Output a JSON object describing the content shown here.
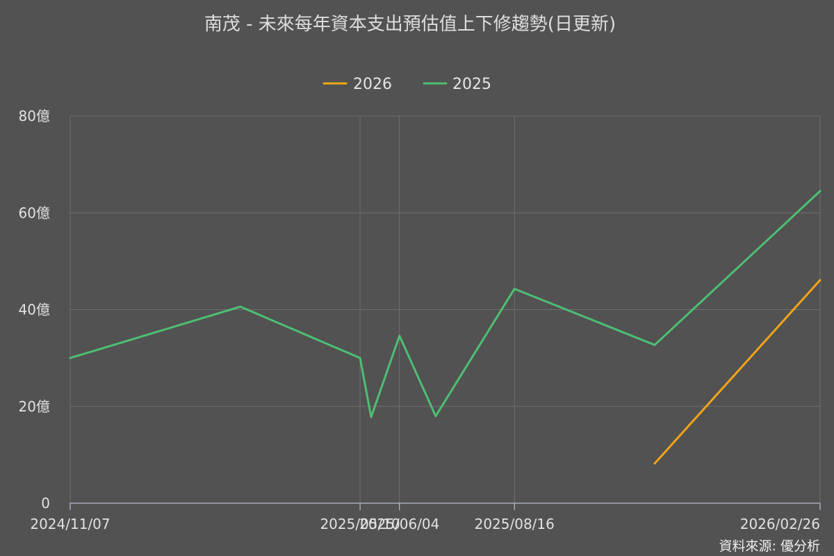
{
  "chart_data": {
    "type": "line",
    "title": "南茂 - 未來每年資本支出預估值上下修趨勢(日更新)",
    "xlim": [
      "2024/11/07",
      "2026/02/26"
    ],
    "ylim": [
      0,
      80
    ],
    "grid": true,
    "legend_position": "top-center",
    "x_ticks": [
      "2024/11/07",
      "2025/05/10",
      "2025/06/04",
      "2025/08/16",
      "2026/02/26"
    ],
    "y_ticks": [
      {
        "value": 0,
        "label": "0"
      },
      {
        "value": 20,
        "label": "20億"
      },
      {
        "value": 40,
        "label": "40億"
      },
      {
        "value": 60,
        "label": "60億"
      },
      {
        "value": 80,
        "label": "80億"
      }
    ],
    "series": [
      {
        "name": "2026",
        "color": "#f2a516",
        "points": [
          {
            "x": "2025/11/13",
            "y": 8.2
          },
          {
            "x": "2026/02/26",
            "y": 46.1
          }
        ]
      },
      {
        "name": "2025",
        "color": "#4dbf73",
        "points": [
          {
            "x": "2024/11/07",
            "y": 30.0
          },
          {
            "x": "2025/02/23",
            "y": 40.6
          },
          {
            "x": "2025/05/10",
            "y": 30.0
          },
          {
            "x": "2025/05/17",
            "y": 17.8
          },
          {
            "x": "2025/06/04",
            "y": 34.6
          },
          {
            "x": "2025/06/27",
            "y": 18.0
          },
          {
            "x": "2025/08/16",
            "y": 44.3
          },
          {
            "x": "2025/11/13",
            "y": 32.7
          },
          {
            "x": "2026/02/26",
            "y": 64.5
          }
        ]
      }
    ]
  },
  "credits": "資料來源: 優分析"
}
